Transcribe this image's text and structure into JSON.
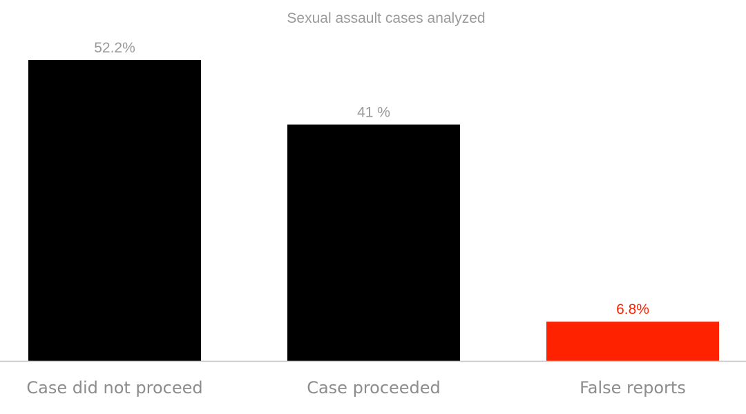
{
  "chart_data": {
    "type": "bar",
    "title": "Sexual assault cases analyzed",
    "xlabel": "",
    "ylabel": "",
    "ylim": [
      0,
      52.2
    ],
    "grid": false,
    "legend": "none",
    "categories": [
      "Case did not proceed",
      "Case proceeded",
      "False reports"
    ],
    "values": [
      52.2,
      41,
      6.8
    ],
    "data_labels": [
      "52.2%",
      "41 %",
      "6.8%"
    ],
    "bar_colors": [
      "#000000",
      "#000000",
      "#ff2200"
    ],
    "label_colors": [
      "#9a9a9a",
      "#9a9a9a",
      "#ff2200"
    ],
    "axis_color": "#bfbfbf"
  }
}
